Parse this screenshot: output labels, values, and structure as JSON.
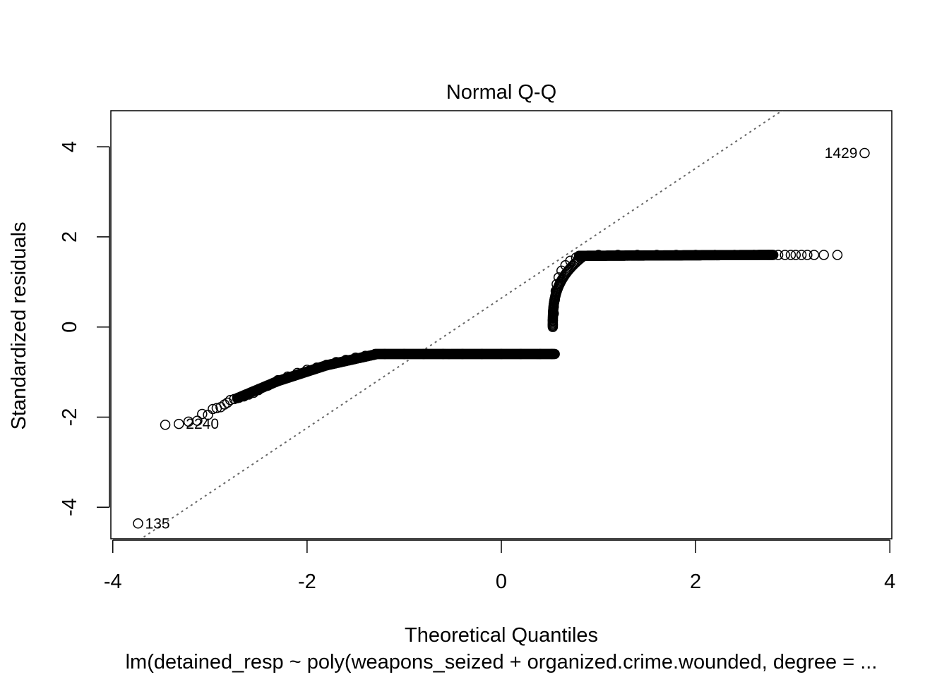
{
  "chart_data": {
    "type": "scatter",
    "title": "Normal Q-Q",
    "xlabel": "Theoretical Quantiles",
    "ylabel": "Standardized residuals",
    "subtitle": "lm(detained_resp ~ poly(weapons_seized + organized.crime.wounded, degree =  ...",
    "xlim": [
      -4.02,
      4.02
    ],
    "ylim": [
      -4.7,
      4.8
    ],
    "xticks": [
      -4,
      -2,
      0,
      2,
      4
    ],
    "yticks": [
      -4,
      -2,
      0,
      2,
      4
    ],
    "xtick_labels": [
      "-4",
      "-2",
      "0",
      "2",
      "4"
    ],
    "ytick_labels": [
      "-4",
      "-2",
      "0",
      "2",
      "4"
    ],
    "reference_line": {
      "style": "dotted",
      "color": "#666666",
      "slope": 1.44,
      "intercept": 0.64
    },
    "labeled_points": [
      {
        "label": "1429",
        "x": 3.74,
        "y": 3.86,
        "side": "left"
      },
      {
        "label": "135",
        "x": -3.74,
        "y": -4.36,
        "side": "right"
      },
      {
        "label": "2240",
        "x": -3.32,
        "y": -2.15,
        "side": "right"
      }
    ],
    "points": [
      [
        -3.74,
        -4.36
      ],
      [
        -3.46,
        -2.17
      ],
      [
        -3.32,
        -2.15
      ],
      [
        -3.22,
        -2.1
      ],
      [
        -3.13,
        -2.08
      ],
      [
        -3.08,
        -1.93
      ],
      [
        -3.02,
        -1.95
      ],
      [
        -2.97,
        -1.82
      ],
      [
        -2.93,
        -1.8
      ],
      [
        -2.89,
        -1.78
      ],
      [
        -2.85,
        -1.72
      ],
      [
        -2.82,
        -1.68
      ],
      [
        -2.79,
        -1.62
      ],
      [
        -2.75,
        -1.6
      ],
      [
        -2.7,
        -1.57
      ],
      [
        -2.65,
        -1.54
      ],
      [
        -2.6,
        -1.5
      ],
      [
        -2.55,
        -1.46
      ],
      [
        -2.5,
        -1.4
      ],
      [
        -2.4,
        -1.3
      ],
      [
        -2.3,
        -1.18
      ],
      [
        -2.2,
        -1.1
      ],
      [
        -2.1,
        -1.02
      ],
      [
        -2.0,
        -0.95
      ],
      [
        -1.9,
        -0.9
      ],
      [
        -1.8,
        -0.84
      ],
      [
        -1.7,
        -0.78
      ],
      [
        -1.6,
        -0.73
      ],
      [
        -1.5,
        -0.68
      ],
      [
        -1.4,
        -0.64
      ],
      [
        -1.3,
        -0.61
      ],
      [
        -1.2,
        -0.6
      ],
      [
        -1.0,
        -0.6
      ],
      [
        -0.8,
        -0.6
      ],
      [
        -0.6,
        -0.6
      ],
      [
        -0.4,
        -0.6
      ],
      [
        -0.2,
        -0.6
      ],
      [
        0.0,
        -0.6
      ],
      [
        0.2,
        -0.6
      ],
      [
        0.4,
        -0.6
      ],
      [
        0.52,
        -0.6
      ],
      [
        0.53,
        0.05
      ],
      [
        0.53,
        0.15
      ],
      [
        0.54,
        0.3
      ],
      [
        0.54,
        0.45
      ],
      [
        0.55,
        0.6
      ],
      [
        0.56,
        0.8
      ],
      [
        0.57,
        0.95
      ],
      [
        0.59,
        1.1
      ],
      [
        0.62,
        1.25
      ],
      [
        0.66,
        1.37
      ],
      [
        0.71,
        1.47
      ],
      [
        0.77,
        1.54
      ],
      [
        0.85,
        1.58
      ],
      [
        1.0,
        1.6
      ],
      [
        1.2,
        1.6
      ],
      [
        1.4,
        1.6
      ],
      [
        1.6,
        1.6
      ],
      [
        1.8,
        1.6
      ],
      [
        2.0,
        1.6
      ],
      [
        2.2,
        1.6
      ],
      [
        2.4,
        1.6
      ],
      [
        2.6,
        1.6
      ],
      [
        2.75,
        1.6
      ],
      [
        2.85,
        1.6
      ],
      [
        2.92,
        1.6
      ],
      [
        2.98,
        1.6
      ],
      [
        3.03,
        1.6
      ],
      [
        3.09,
        1.6
      ],
      [
        3.15,
        1.6
      ],
      [
        3.22,
        1.6
      ],
      [
        3.32,
        1.6
      ],
      [
        3.46,
        1.6
      ],
      [
        3.74,
        3.86
      ]
    ],
    "dense_runs": [
      {
        "from": [
          -2.72,
          -1.58
        ],
        "to": [
          -2.3,
          -1.2
        ],
        "n": 50
      },
      {
        "from": [
          -2.3,
          -1.2
        ],
        "to": [
          -1.8,
          -0.85
        ],
        "n": 70
      },
      {
        "from": [
          -1.8,
          -0.85
        ],
        "to": [
          -1.3,
          -0.61
        ],
        "n": 70
      },
      {
        "from": [
          -1.3,
          -0.6
        ],
        "to": [
          0.55,
          -0.6
        ],
        "n": 240
      },
      {
        "from": [
          0.8,
          1.58
        ],
        "to": [
          2.8,
          1.6
        ],
        "n": 260
      }
    ],
    "dense_curve": {
      "x_from": 0.53,
      "x_to": 0.85,
      "y_from": 0.0,
      "y_to": 1.58,
      "n": 60
    },
    "grid": false,
    "legend": "none"
  }
}
